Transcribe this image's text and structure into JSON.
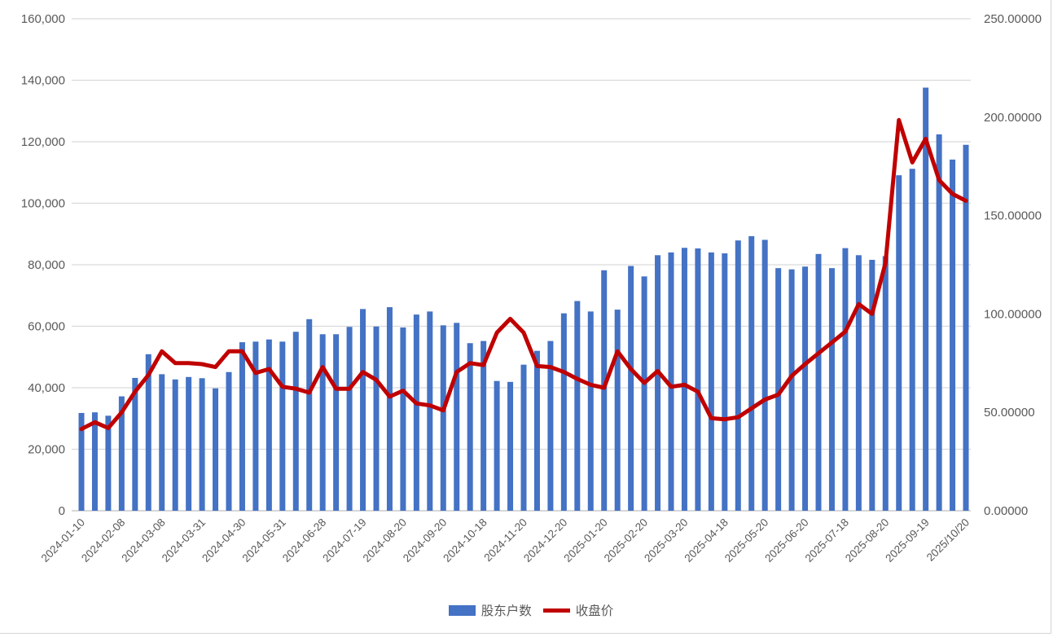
{
  "chart_data": {
    "type": "bar",
    "title": "",
    "xlabel": "",
    "ylabel_left": "",
    "ylabel_right": "",
    "grid": true,
    "legend_position": "bottom",
    "n_points": 67,
    "x_label_every": 3,
    "x_tick_labels": [
      "2024-01-10",
      "2024-02-08",
      "2024-03-08",
      "2024-03-31",
      "2024-04-30",
      "2024-05-31",
      "2024-06-28",
      "2024-07-19",
      "2024-08-20",
      "2024-09-20",
      "2024-10-18",
      "2024-11-20",
      "2024-12-20",
      "2025-01-20",
      "2025-02-20",
      "2025-03-20",
      "2025-04-18",
      "2025-05-20",
      "2025-06-20",
      "2025-07-18",
      "2025-08-20",
      "2025-09-19",
      "2025/10/20"
    ],
    "axes": {
      "left": {
        "min": 0,
        "max": 160000,
        "step": 20000,
        "tick_labels": [
          "0",
          "20,000",
          "40,000",
          "60,000",
          "80,000",
          "100,000",
          "120,000",
          "140,000",
          "160,000"
        ]
      },
      "right": {
        "min": 0,
        "max": 250,
        "step": 50,
        "tick_labels": [
          "0.00000",
          "50.00000",
          "100.00000",
          "150.00000",
          "200.00000",
          "250.00000"
        ]
      }
    },
    "series": [
      {
        "name": "股东户数",
        "type": "bar",
        "axis": "left",
        "color": "#4472C4",
        "values": [
          31800,
          32000,
          30900,
          37200,
          43200,
          50900,
          44400,
          42700,
          43500,
          43100,
          39800,
          45100,
          54800,
          55000,
          55700,
          55000,
          58200,
          62300,
          57400,
          57400,
          59800,
          65600,
          59900,
          66200,
          59600,
          63800,
          64800,
          60300,
          61100,
          54500,
          55200,
          42200,
          41900,
          47500,
          52000,
          55200,
          64200,
          68200,
          64800,
          78200,
          65400,
          79600,
          76200,
          83100,
          84000,
          85500,
          85300,
          84000,
          83700,
          87900,
          89300,
          88100,
          78900,
          78500,
          79400,
          83500,
          78900,
          85400,
          83100,
          81600,
          82800,
          109100,
          111200,
          137600,
          122400,
          114200,
          119000
        ]
      },
      {
        "name": "收盘价",
        "type": "line",
        "axis": "right",
        "color": "#C00000",
        "values": [
          41.5,
          45,
          42,
          50,
          60.5,
          69,
          81,
          75,
          75,
          74.5,
          73,
          81,
          81,
          70,
          72,
          63,
          62,
          60,
          73,
          62,
          62,
          70.5,
          66.5,
          58,
          61,
          54.5,
          53.5,
          51,
          70.5,
          75,
          74,
          90.5,
          97.5,
          90.5,
          73.5,
          73,
          70.5,
          67,
          64,
          62.5,
          81,
          72,
          65,
          71,
          63,
          64,
          60.5,
          47,
          46.5,
          47.5,
          52,
          56.5,
          59,
          68.5,
          74.5,
          80,
          85.5,
          91,
          105,
          100,
          126,
          198.5,
          177,
          189,
          168,
          161,
          157.5
        ]
      }
    ],
    "colors": {
      "bar": "#4472C4",
      "line": "#C00000",
      "gridline": "#d9d9d9",
      "axis_line": "#bfbfbf",
      "text": "#595959"
    }
  },
  "legend": {
    "items": [
      {
        "label": "股东户数",
        "swatch": "bar-swatch"
      },
      {
        "label": "收盘价",
        "swatch": "line-swatch"
      }
    ]
  }
}
